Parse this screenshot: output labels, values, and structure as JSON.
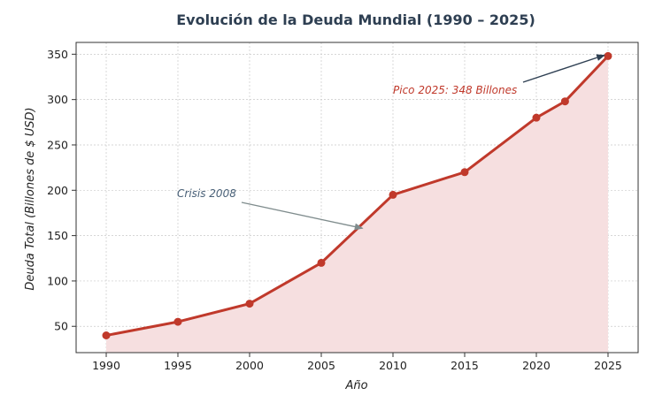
{
  "chart_data": {
    "type": "area",
    "title": "Evolución de la Deuda Mundial (1990 – 2025)",
    "xlabel": "Año",
    "ylabel": "Deuda Total (Billones de $ USD)",
    "x": [
      1990,
      1995,
      2000,
      2005,
      2010,
      2015,
      2020,
      2022,
      2025
    ],
    "y": [
      40,
      55,
      75,
      120,
      195,
      220,
      280,
      298,
      348
    ],
    "xticks": [
      1990,
      1995,
      2000,
      2005,
      2010,
      2015,
      2020,
      2025
    ],
    "yticks": [
      50,
      100,
      150,
      200,
      250,
      300,
      350
    ],
    "xlim": [
      1987.9,
      2027.1
    ],
    "ylim": [
      21,
      363
    ],
    "grid": true,
    "line_color": "#c0392b",
    "fill_color": "#f6dfe0",
    "annotations": [
      {
        "text": "Crisis 2008",
        "x": 2008,
        "y": 160,
        "color": "#4a6178",
        "arrow_color": "#7f8c8d"
      },
      {
        "text": "Pico 2025:  348 Billones",
        "x": 2025,
        "y": 348,
        "color": "#c0392b",
        "arrow_color": "#2e3f52"
      }
    ]
  }
}
